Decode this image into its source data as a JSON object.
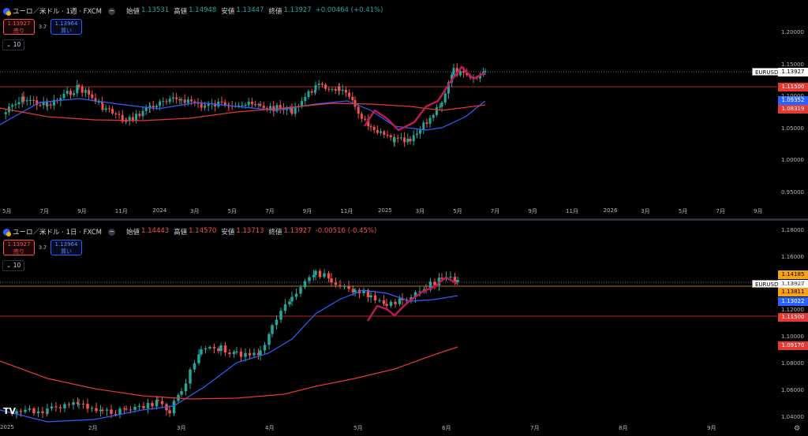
{
  "pane1": {
    "title": "ユーロ／米ドル · 1週 · FXCM",
    "ohlc": {
      "open_label": "始値",
      "open": "1.13531",
      "high_label": "高値",
      "high": "1.14948",
      "low_label": "安値",
      "low": "1.13447",
      "close_label": "終値",
      "close": "1.13927",
      "change": "+0.00464 (+0.41%)"
    },
    "sell_price": "1.13927",
    "sell_label": "売り",
    "spread": "3.7",
    "buy_price": "1.13964",
    "buy_label": "買い",
    "indicator_label": "10",
    "symbol_label": "EURUSD",
    "price_tags": [
      {
        "text": "1.13927",
        "style": "white"
      },
      {
        "text": "1.11500",
        "style": "red"
      },
      {
        "text": "1.09352",
        "style": "blue"
      },
      {
        "text": "1.08319",
        "style": "red"
      }
    ],
    "y_axis": [
      "1.20000",
      "1.15000",
      "1.10000",
      "1.05000",
      "1.00000",
      "0.95000"
    ],
    "x_axis": [
      "5月",
      "7月",
      "9月",
      "11月",
      "2024",
      "3月",
      "5月",
      "7月",
      "9月",
      "11月",
      "2025",
      "3月",
      "5月",
      "7月",
      "9月",
      "11月",
      "2026",
      "3月",
      "5月",
      "7月",
      "9月"
    ]
  },
  "pane2": {
    "title": "ユーロ／米ドル · 1日 · FXCM",
    "ohlc": {
      "open_label": "始値",
      "open": "1.14443",
      "high_label": "高値",
      "high": "1.14570",
      "low_label": "安値",
      "low": "1.13713",
      "close_label": "終値",
      "close": "1.13927",
      "change": "-0.00516 (-0.45%)"
    },
    "sell_price": "1.13927",
    "sell_label": "売り",
    "spread": "3.7",
    "buy_price": "1.13964",
    "buy_label": "買い",
    "indicator_label": "10",
    "symbol_label": "EURUSD",
    "price_tags": [
      {
        "text": "1.14185",
        "style": "orange"
      },
      {
        "text": "1.13927",
        "style": "white"
      },
      {
        "text": "1.13811",
        "style": "orange"
      },
      {
        "text": "1.13022",
        "style": "blue"
      },
      {
        "text": "1.11500",
        "style": "red"
      },
      {
        "text": "1.09170",
        "style": "red"
      }
    ],
    "y_axis": [
      "1.18000",
      "1.16000",
      "1.14000",
      "1.12000",
      "1.10000",
      "1.08000",
      "1.06000",
      "1.04000"
    ],
    "x_axis": [
      "2025",
      "2月",
      "3月",
      "4月",
      "5月",
      "6月",
      "7月",
      "8月",
      "9月"
    ]
  },
  "colors": {
    "up": "#26a69a",
    "down": "#ef5350",
    "ma_fast": "#2962ff",
    "ma_slow": "#e53935",
    "hline": "#e53935",
    "highlight": "#c2185b"
  }
}
